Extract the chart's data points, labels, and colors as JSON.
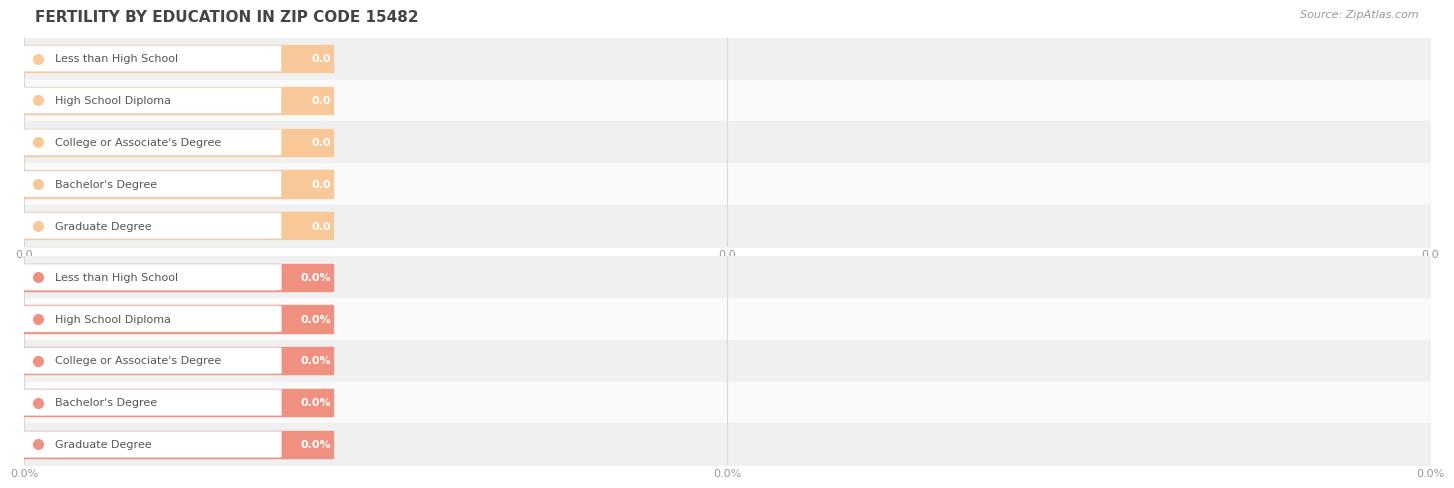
{
  "title": "FERTILITY BY EDUCATION IN ZIP CODE 15482",
  "source": "Source: ZipAtlas.com",
  "categories": [
    "Less than High School",
    "High School Diploma",
    "College or Associate's Degree",
    "Bachelor's Degree",
    "Graduate Degree"
  ],
  "top_values": [
    0.0,
    0.0,
    0.0,
    0.0,
    0.0
  ],
  "bottom_values": [
    0.0,
    0.0,
    0.0,
    0.0,
    0.0
  ],
  "top_bar_color": "#F8C898",
  "top_label_text": "#555555",
  "top_dot_color": "#F8C898",
  "top_xlabel_vals": [
    "0.0",
    "0.0",
    "0.0"
  ],
  "bottom_bar_color": "#F09080",
  "bottom_label_text": "#555555",
  "bottom_dot_color": "#F09080",
  "bottom_xlabel_vals": [
    "0.0%",
    "0.0%",
    "0.0%"
  ],
  "fig_bg": "#FFFFFF",
  "row_bg_colors": [
    "#F0F0F0",
    "#FAFAFA"
  ],
  "bar_bg_color": "#E8E8E8",
  "grid_color": "#D8D8D8",
  "label_box_color": "#FFFFFF",
  "label_box_edge": "#DDDDDD",
  "tick_color": "#999999",
  "title_color": "#444444",
  "source_color": "#999999",
  "title_fontsize": 11,
  "source_fontsize": 8,
  "bar_label_fontsize": 8,
  "cat_fontsize": 8,
  "tick_fontsize": 8
}
